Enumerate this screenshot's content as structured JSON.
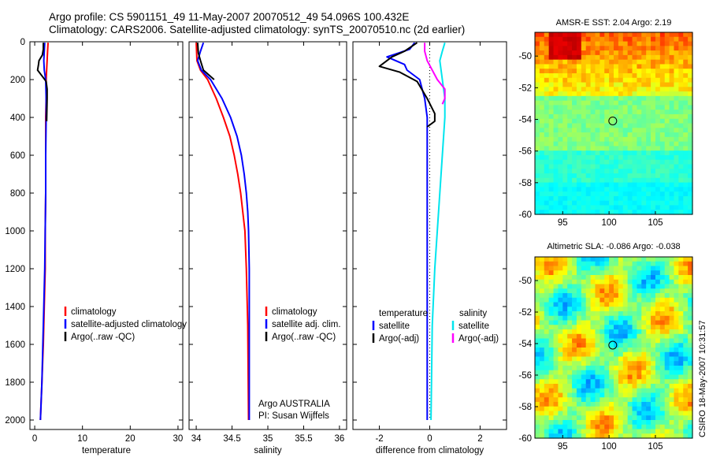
{
  "header": {
    "title_line1": "Argo profile: CS 5901151_49 11-May-2007 20070512_49 54.096S 100.432E",
    "title_line2": "Climatology: CARS2006. Satellite-adjusted climatology: synTS_20070510.nc (2d earlier)"
  },
  "side_label": "CSIRO 18-May-2007 10:31:57",
  "chart_data": [
    {
      "type": "line",
      "id": "temperature",
      "xlabel": "temperature",
      "xlim": [
        -1,
        31
      ],
      "ylim": [
        2050,
        0
      ],
      "xticks": [
        0,
        10,
        20,
        30
      ],
      "yticks": [
        0,
        200,
        400,
        600,
        800,
        1000,
        1200,
        1400,
        1600,
        1800,
        2000
      ],
      "legend": [
        "climatology",
        "satellite-adjusted climatology",
        "Argo(..raw -QC)"
      ],
      "series": [
        {
          "name": "climatology",
          "color": "#ff0000",
          "points": [
            [
              2.8,
              5
            ],
            [
              2.7,
              50
            ],
            [
              2.6,
              100
            ],
            [
              2.5,
              150
            ],
            [
              2.4,
              200
            ],
            [
              2.4,
              300
            ],
            [
              2.3,
              400
            ],
            [
              2.3,
              600
            ],
            [
              2.3,
              800
            ],
            [
              2.2,
              1000
            ],
            [
              2.2,
              1200
            ],
            [
              2.0,
              1400
            ],
            [
              1.8,
              1600
            ],
            [
              1.5,
              1800
            ],
            [
              1.2,
              2000
            ]
          ]
        },
        {
          "name": "satellite-adjusted climatology",
          "color": "#0000ff",
          "points": [
            [
              2.1,
              5
            ],
            [
              2.0,
              50
            ],
            [
              1.9,
              100
            ],
            [
              2.0,
              150
            ],
            [
              2.3,
              200
            ],
            [
              2.4,
              300
            ],
            [
              2.4,
              400
            ],
            [
              2.3,
              600
            ],
            [
              2.3,
              800
            ],
            [
              2.2,
              1000
            ],
            [
              2.1,
              1200
            ],
            [
              1.9,
              1400
            ],
            [
              1.7,
              1600
            ],
            [
              1.5,
              1800
            ],
            [
              1.2,
              2000
            ]
          ]
        },
        {
          "name": "Argo(..raw -QC)",
          "color": "#000000",
          "points": [
            [
              1.8,
              5
            ],
            [
              1.8,
              40
            ],
            [
              1.6,
              70
            ],
            [
              0.9,
              100
            ],
            [
              0.8,
              120
            ],
            [
              0.6,
              150
            ],
            [
              1.5,
              180
            ],
            [
              2.4,
              210
            ],
            [
              2.6,
              250
            ],
            [
              2.6,
              300
            ],
            [
              2.5,
              420
            ]
          ]
        }
      ]
    },
    {
      "type": "line",
      "id": "salinity",
      "xlabel": "salinity",
      "xlim": [
        33.9,
        36.1
      ],
      "ylim": [
        2050,
        0
      ],
      "xticks": [
        34,
        34.5,
        35,
        35.5,
        36
      ],
      "legend": [
        "climatology",
        "satellite adj. clim.",
        "Argo(..raw -QC)"
      ],
      "annotation": [
        "Argo AUSTRALIA",
        "PI: Susan Wijffels"
      ],
      "series": [
        {
          "name": "climatology",
          "color": "#ff0000",
          "points": [
            [
              34.0,
              5
            ],
            [
              34.01,
              100
            ],
            [
              34.06,
              150
            ],
            [
              34.16,
              200
            ],
            [
              34.28,
              300
            ],
            [
              34.38,
              400
            ],
            [
              34.47,
              500
            ],
            [
              34.53,
              600
            ],
            [
              34.58,
              700
            ],
            [
              34.62,
              800
            ],
            [
              34.65,
              900
            ],
            [
              34.68,
              1000
            ],
            [
              34.7,
              1200
            ],
            [
              34.72,
              1500
            ],
            [
              34.73,
              2000
            ]
          ]
        },
        {
          "name": "satellite adj. clim.",
          "color": "#0000ff",
          "points": [
            [
              34.1,
              5
            ],
            [
              34.06,
              50
            ],
            [
              34.02,
              100
            ],
            [
              34.07,
              150
            ],
            [
              34.2,
              200
            ],
            [
              34.36,
              300
            ],
            [
              34.48,
              400
            ],
            [
              34.57,
              500
            ],
            [
              34.63,
              600
            ],
            [
              34.67,
              700
            ],
            [
              34.7,
              800
            ],
            [
              34.72,
              900
            ],
            [
              34.73,
              1000
            ],
            [
              34.74,
              1200
            ],
            [
              34.74,
              1500
            ],
            [
              34.74,
              2000
            ]
          ]
        },
        {
          "name": "Argo(..raw -QC)",
          "color": "#000000",
          "points": [
            [
              34.02,
              5
            ],
            [
              34.03,
              60
            ],
            [
              34.06,
              100
            ],
            [
              34.1,
              150
            ],
            [
              34.25,
              200
            ]
          ]
        }
      ]
    },
    {
      "type": "line",
      "id": "difference",
      "xlabel": "difference from climatology",
      "xlim": [
        -3.05,
        3.05
      ],
      "ylim": [
        2050,
        0
      ],
      "xticks": [
        -2,
        0,
        2
      ],
      "legend_left_title": "temperature",
      "legend_left": [
        "satellite",
        "Argo(-adj)"
      ],
      "legend_right_title": "salinity",
      "legend_right": [
        "satellite",
        "Argo(-adj)"
      ],
      "series": [
        {
          "name": "temperature satellite",
          "color": "#0000ff",
          "points": [
            [
              -0.6,
              5
            ],
            [
              -0.8,
              40
            ],
            [
              -1.7,
              80
            ],
            [
              -1.0,
              120
            ],
            [
              -0.9,
              150
            ],
            [
              -0.4,
              200
            ],
            [
              -0.2,
              300
            ],
            [
              -0.1,
              400
            ],
            [
              -0.1,
              500
            ],
            [
              -0.1,
              800
            ],
            [
              -0.1,
              1000
            ],
            [
              -0.1,
              1500
            ],
            [
              -0.1,
              2000
            ]
          ]
        },
        {
          "name": "temperature Argo(-adj)",
          "color": "#000000",
          "points": [
            [
              -0.5,
              5
            ],
            [
              -1.0,
              50
            ],
            [
              -1.5,
              80
            ],
            [
              -2.0,
              130
            ],
            [
              -1.2,
              160
            ],
            [
              -0.5,
              210
            ],
            [
              -0.1,
              300
            ],
            [
              0.2,
              380
            ],
            [
              0.2,
              420
            ],
            [
              -0.1,
              450
            ]
          ]
        },
        {
          "name": "salinity satellite",
          "color": "#00e5ee",
          "points": [
            [
              0.6,
              5
            ],
            [
              0.5,
              50
            ],
            [
              0.4,
              100
            ],
            [
              0.5,
              200
            ],
            [
              0.6,
              300
            ],
            [
              0.6,
              400
            ],
            [
              0.5,
              600
            ],
            [
              0.4,
              800
            ],
            [
              0.3,
              1000
            ],
            [
              0.2,
              1200
            ],
            [
              0.1,
              1500
            ],
            [
              0.05,
              2000
            ]
          ]
        },
        {
          "name": "salinity Argo(-adj)",
          "color": "#ff00ff",
          "points": [
            [
              -0.2,
              5
            ],
            [
              -0.2,
              50
            ],
            [
              -0.1,
              100
            ],
            [
              0.1,
              150
            ],
            [
              0.3,
              200
            ],
            [
              0.6,
              250
            ],
            [
              0.6,
              300
            ],
            [
              0.5,
              330
            ]
          ]
        }
      ]
    },
    {
      "type": "heatmap",
      "id": "sst_map",
      "title": "AMSR-E SST: 2.04  Argo: 2.19",
      "xlim": [
        92,
        109
      ],
      "ylim": [
        -60,
        -48.5
      ],
      "xticks": [
        95,
        100,
        105
      ],
      "yticks": [
        -50,
        -52,
        -54,
        -56,
        -58,
        -60
      ],
      "argo_position": [
        100.4,
        -54.1
      ]
    },
    {
      "type": "heatmap",
      "id": "sla_map",
      "title": "Altimetric SLA: -0.086  Argo: -0.038",
      "xlim": [
        92,
        109
      ],
      "ylim": [
        -60,
        -48.5
      ],
      "xticks": [
        95,
        100,
        105
      ],
      "yticks": [
        -50,
        -52,
        -54,
        -56,
        -58,
        -60
      ],
      "argo_position": [
        100.4,
        -54.1
      ]
    }
  ]
}
